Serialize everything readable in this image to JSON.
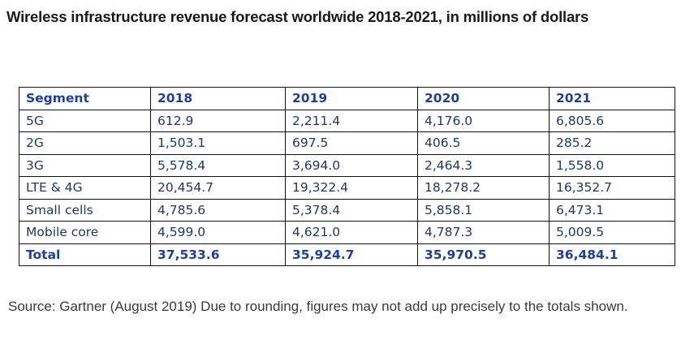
{
  "title": "Wireless infrastructure revenue forecast worldwide 2018-2021, in millions of dollars",
  "table": {
    "columns": [
      "Segment",
      "2018",
      "2019",
      "2020",
      "2021"
    ],
    "rows": [
      [
        "5G",
        "612.9",
        "2,211.4",
        "4,176.0",
        "6,805.6"
      ],
      [
        "2G",
        "1,503.1",
        "697.5",
        "406.5",
        "285.2"
      ],
      [
        "3G",
        "5,578.4",
        "3,694.0",
        "2,464.3",
        "1,558.0"
      ],
      [
        "LTE & 4G",
        "20,454.7",
        "19,322.4",
        "18,278.2",
        "16,352.7"
      ],
      [
        "Small cells",
        "4,785.6",
        "5,378.4",
        "5,858.1",
        "6,473.1"
      ],
      [
        "Mobile core",
        "4,599.0",
        "4,621.0",
        "4,787.3",
        "5,009.5"
      ]
    ],
    "total": [
      "Total",
      "37,533.6",
      "35,924.7",
      "35,970.5",
      "36,484.1"
    ]
  },
  "source": "Source: Gartner (August 2019) Due to rounding, figures may not add up precisely to the totals shown.",
  "colors": {
    "header_text": "#1f3fa0",
    "body_text": "#1f3864",
    "border": "#111111"
  }
}
